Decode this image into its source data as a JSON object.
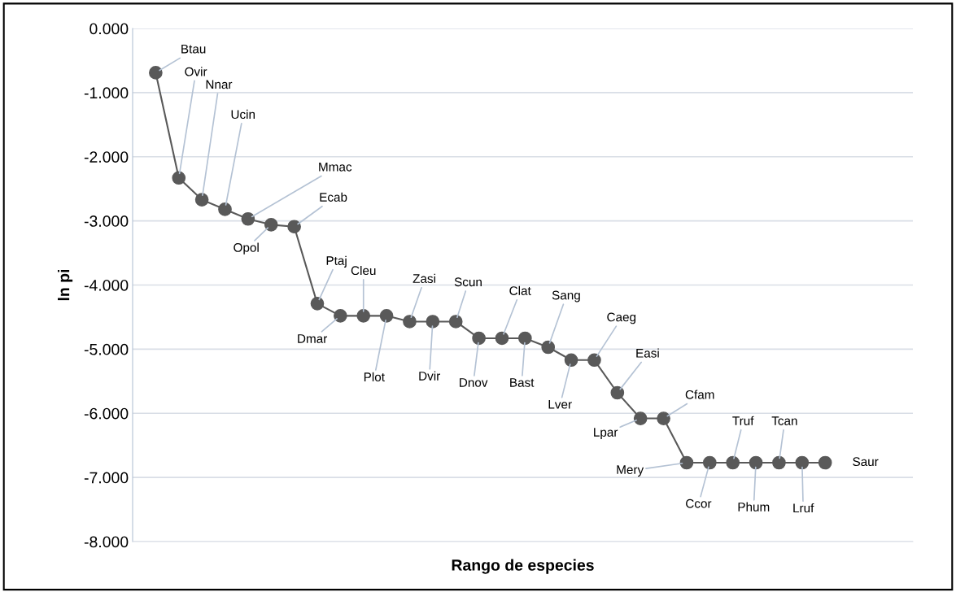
{
  "chart_data": {
    "type": "line",
    "xlabel": "Rango de especies",
    "ylabel": "ln pi",
    "categories": [
      null,
      null,
      null,
      null,
      null,
      null,
      null,
      null,
      null,
      null,
      null,
      null,
      null,
      null,
      null,
      null,
      null,
      null,
      null,
      null,
      null,
      null,
      null,
      null,
      null,
      null,
      null,
      null,
      null,
      null
    ],
    "series": [
      {
        "color": "#595959",
        "values": [
          -0.69,
          -2.33,
          -2.67,
          -2.82,
          -2.97,
          -3.06,
          -3.09,
          -4.29,
          -4.48,
          -4.48,
          -4.48,
          -4.57,
          -4.57,
          -4.57,
          -4.83,
          -4.83,
          -4.83,
          -4.97,
          -5.17,
          -5.17,
          -5.68,
          -6.08,
          -6.08,
          -6.77,
          -6.77,
          -6.77,
          -6.77,
          -6.77,
          -6.77,
          -6.77
        ],
        "value_labels": [
          "Btau",
          "Ovir",
          "Nnar",
          "Ucin",
          "Mmac",
          "Opol",
          "Ecab",
          "Ptaj",
          "Dmar",
          "Cleu",
          "Plot",
          "Zasi",
          "Dvir",
          "Scun",
          "Dnov",
          "Clat",
          "Bast",
          "Sang",
          "Lver",
          "Caeg",
          "Easi",
          "Lpar",
          "Cfam",
          "Mery",
          "Ccor",
          "Truf",
          "Phum",
          "Tcan",
          "Lruf",
          "Saur"
        ]
      }
    ],
    "ylim": [
      -8,
      0
    ],
    "yticks": [
      {
        "value": 0,
        "label": "0.000"
      },
      {
        "value": -1,
        "label": "-1.000"
      },
      {
        "value": -2,
        "label": "-2.000"
      },
      {
        "value": -3,
        "label": "-3.000"
      },
      {
        "value": -4,
        "label": "-4.000"
      },
      {
        "value": -5,
        "label": "-5.000"
      },
      {
        "value": -6,
        "label": "-6.000"
      },
      {
        "value": -7,
        "label": "-7.000"
      },
      {
        "value": -8,
        "label": "-8.000"
      }
    ],
    "grid": "y",
    "marker": "circle",
    "line_style": "solid",
    "legend": false
  }
}
